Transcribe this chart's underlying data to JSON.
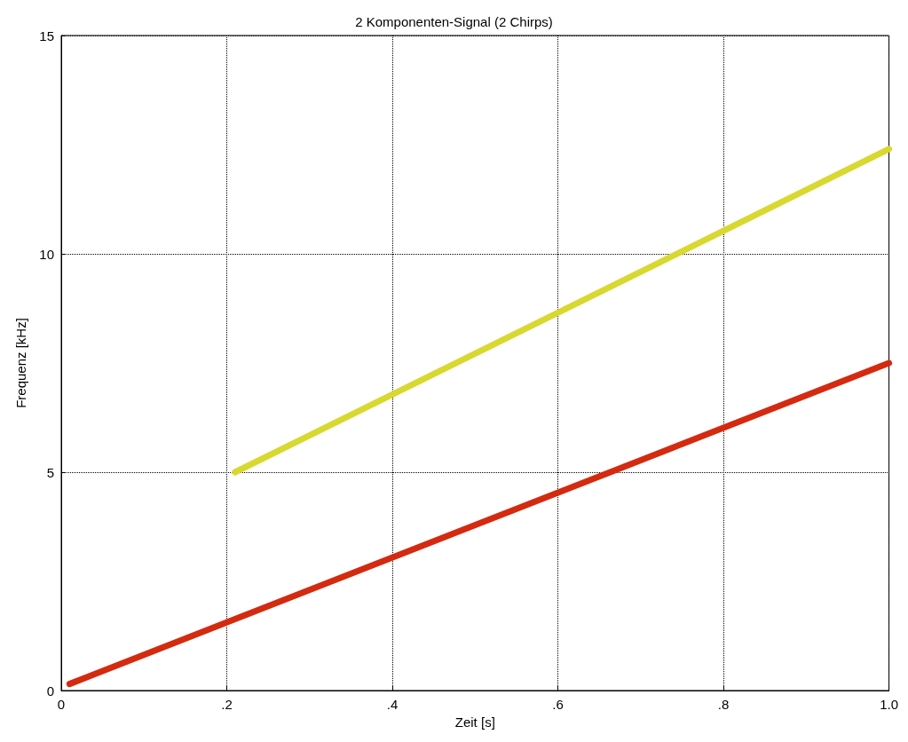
{
  "chart_data": {
    "type": "line",
    "title": "2 Komponenten-Signal (2 Chirps)",
    "xlabel": "Zeit [s]",
    "ylabel": "Frequenz [kHz]",
    "xlim": [
      0,
      1.0
    ],
    "ylim": [
      0,
      15
    ],
    "xticks": [
      0,
      {
        "value": 0.2,
        "label": ".2"
      },
      {
        "value": 0.4,
        "label": ".4"
      },
      {
        "value": 0.6,
        "label": ".6"
      },
      {
        "value": 0.8,
        "label": ".8"
      },
      {
        "value": 1.0,
        "label": "1.0"
      }
    ],
    "yticks": [
      0,
      5,
      10,
      15
    ],
    "series": [
      {
        "color": "#d42a10",
        "x": [
          0.01,
          1.0
        ],
        "values": [
          0.15,
          7.5
        ]
      },
      {
        "color": "#d8d830",
        "x": [
          0.21,
          1.0
        ],
        "values": [
          5.0,
          12.4
        ]
      }
    ],
    "grid": true,
    "marker": "none",
    "line_style": "solid"
  }
}
